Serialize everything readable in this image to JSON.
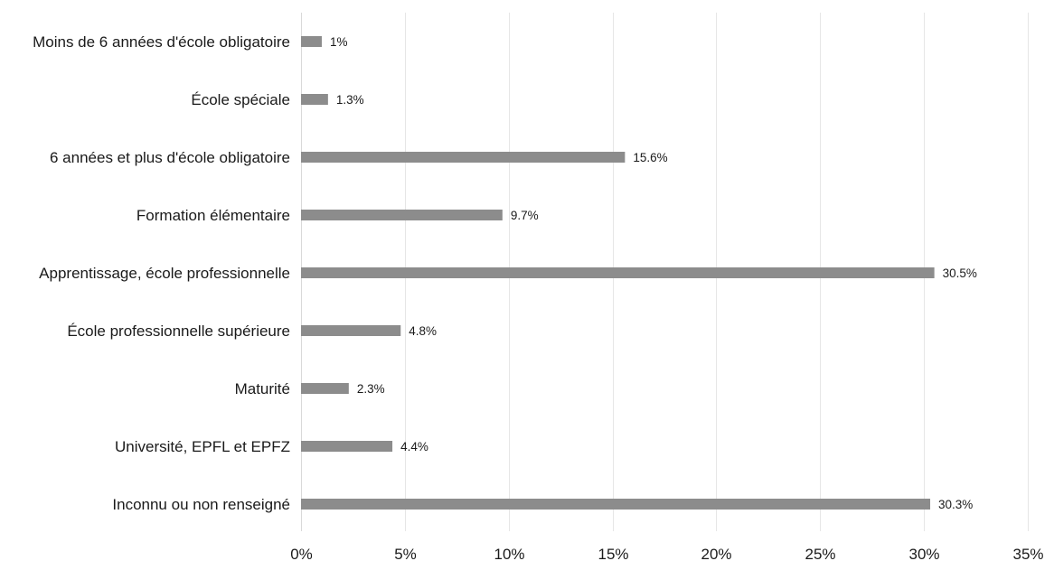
{
  "chart_data": {
    "type": "bar",
    "orientation": "horizontal",
    "categories": [
      "Moins de 6 années d'école obligatoire",
      "École spéciale",
      "6 années et plus d'école obligatoire",
      "Formation élémentaire",
      "Apprentissage, école professionnelle",
      "École professionnelle supérieure",
      "Maturité",
      "Université, EPFL et EPFZ",
      "Inconnu ou non renseigné"
    ],
    "values": [
      1,
      1.3,
      15.6,
      9.7,
      30.5,
      4.8,
      2.3,
      4.4,
      30.3
    ],
    "value_labels": [
      "1%",
      "1.3%",
      "15.6%",
      "9.7%",
      "30.5%",
      "4.8%",
      "2.3%",
      "4.4%",
      "30.3%"
    ],
    "xlim": [
      0,
      35
    ],
    "x_ticks": [
      0,
      5,
      10,
      15,
      20,
      25,
      30,
      35
    ],
    "x_tick_labels": [
      "0%",
      "5%",
      "10%",
      "15%",
      "20%",
      "25%",
      "30%",
      "35%"
    ],
    "title": "",
    "xlabel": "",
    "ylabel": "",
    "grid": true,
    "legend": "none",
    "bar_color": "#8c8c8c",
    "grid_color": "#e6e6e6"
  }
}
